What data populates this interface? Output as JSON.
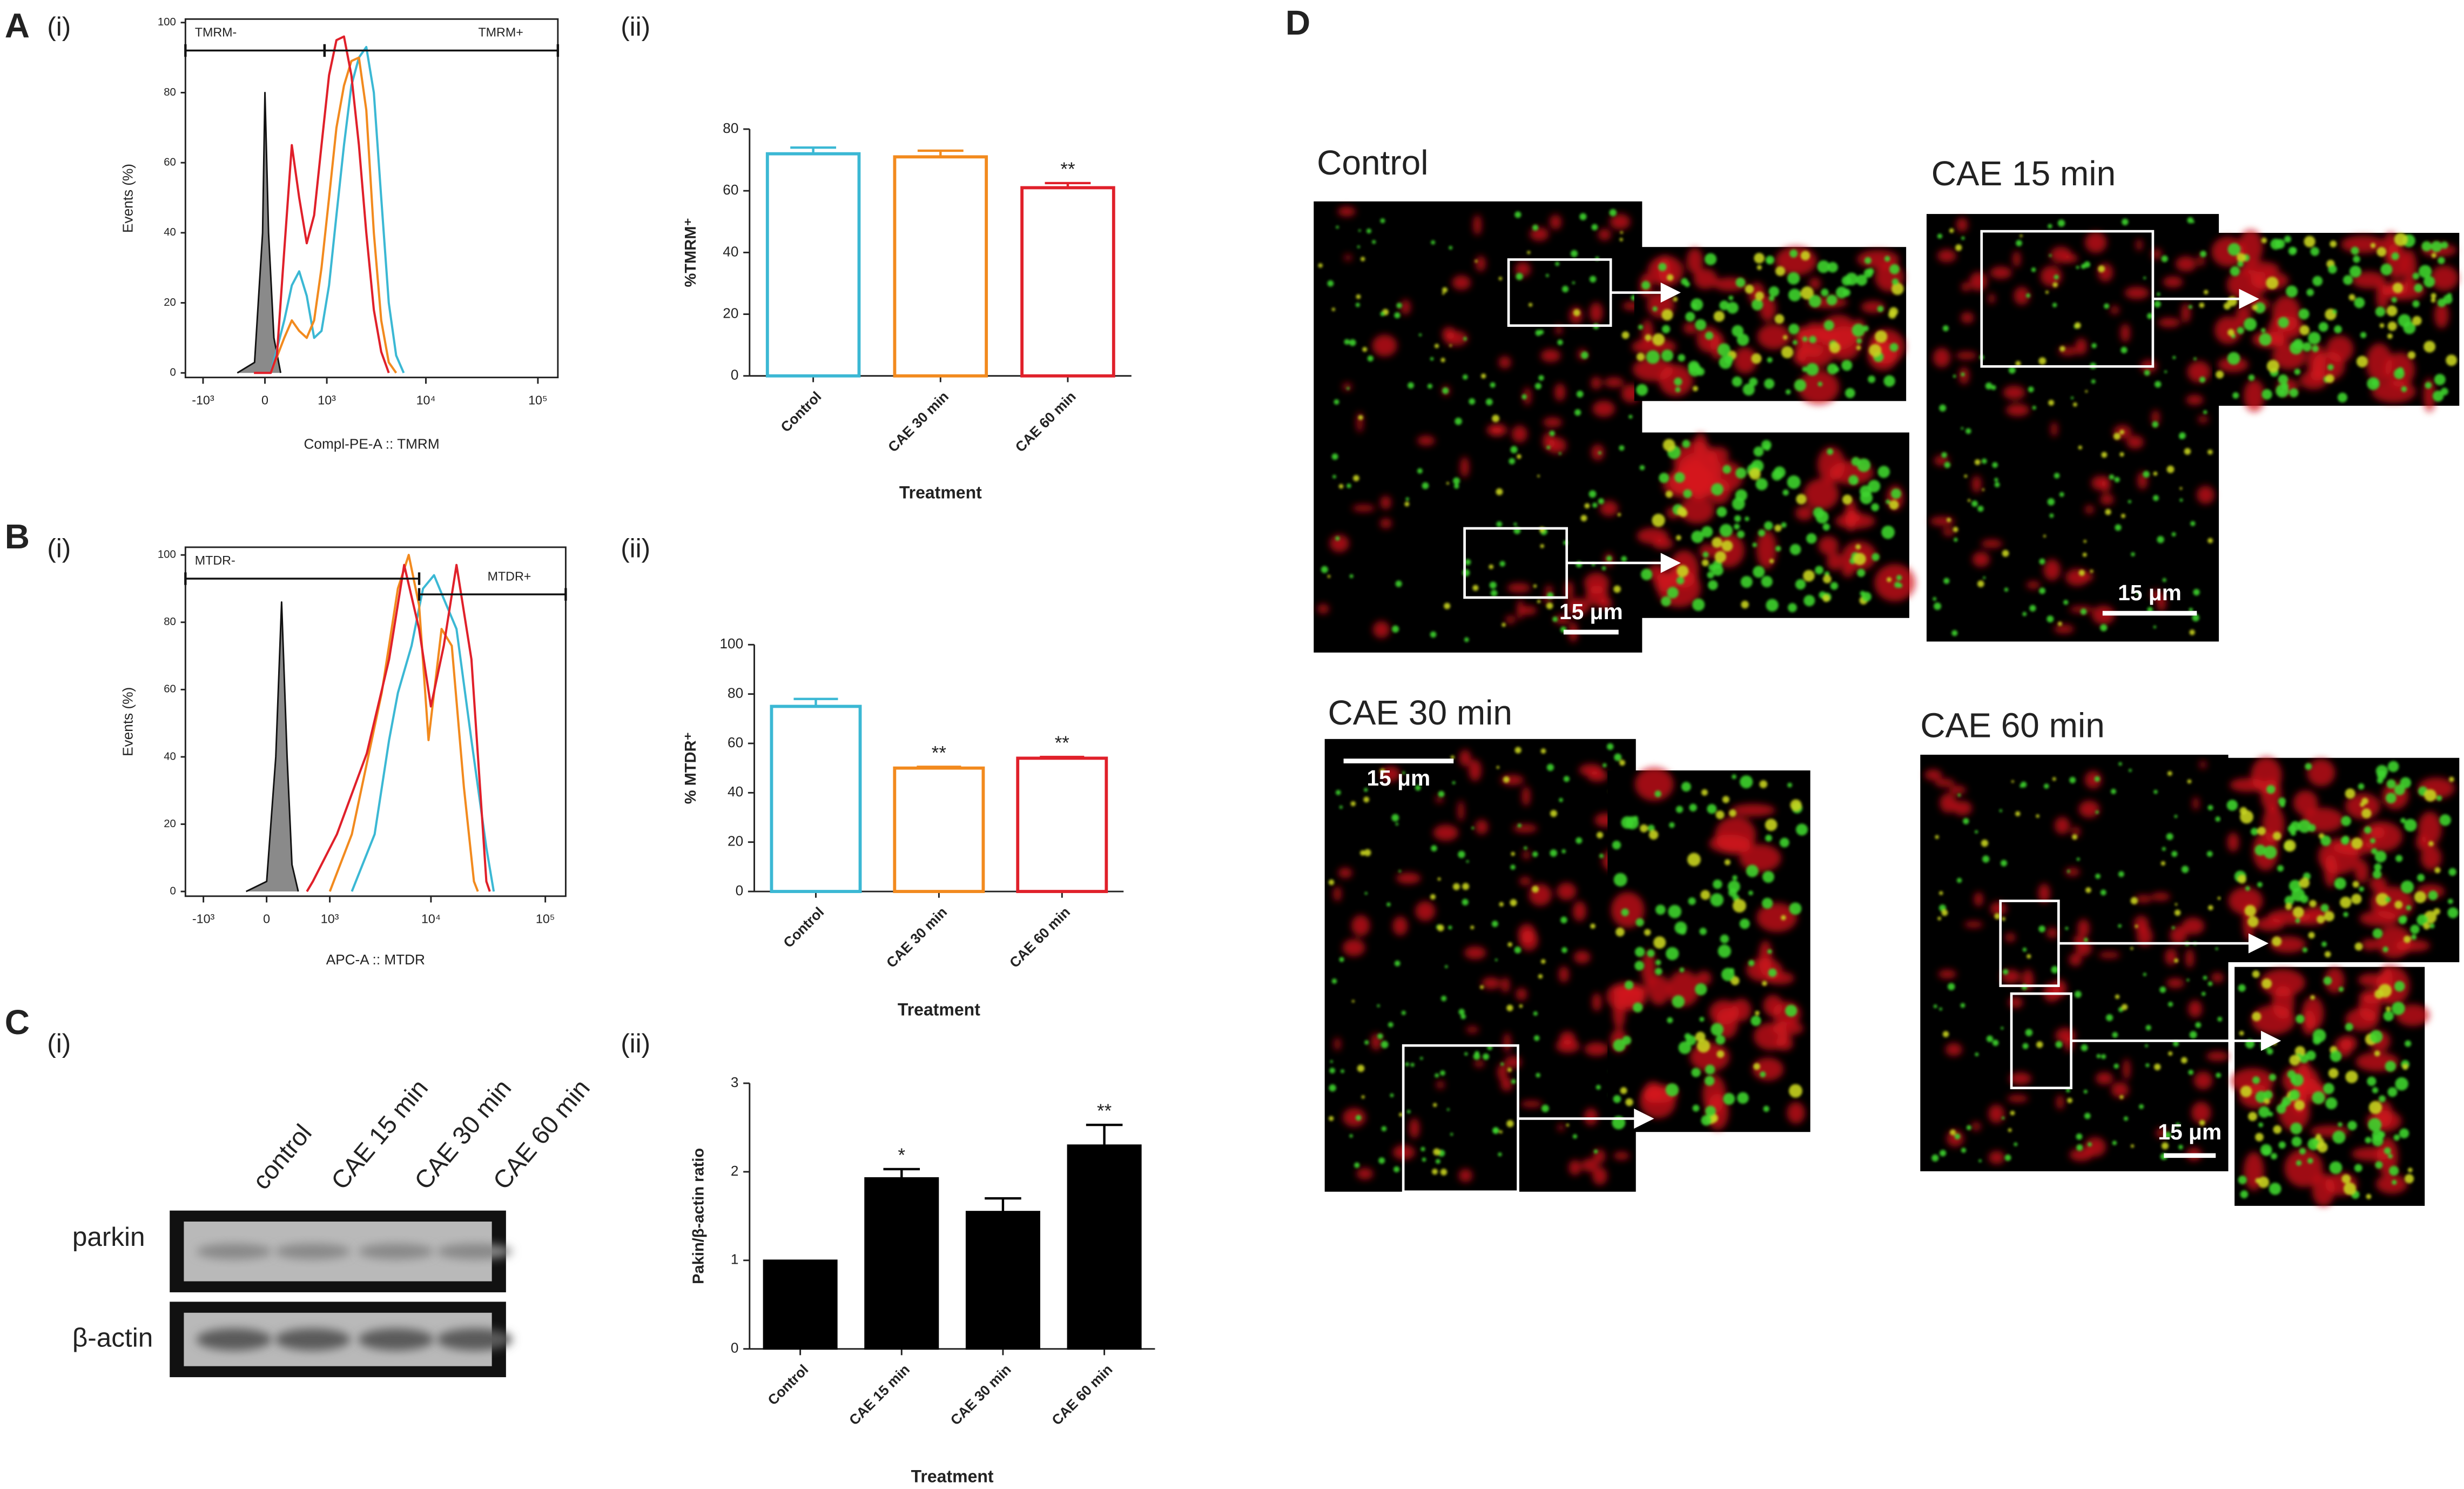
{
  "panel_labels": [
    "A",
    "(i)",
    "(ii)",
    "B",
    "(i)",
    "(ii)",
    "C",
    "(i)",
    "(ii)",
    "D"
  ],
  "chart_data": [
    {
      "type": "line",
      "xscale": "symlog",
      "x_label": "Compl-PE-A :: TMRM",
      "y_label": "Events (%)",
      "xlim": [
        -1600,
        150000
      ],
      "ylim": [
        -1.3,
        101
      ],
      "xticks": [
        {
          "value": -1000,
          "label": "-10³"
        },
        0,
        {
          "value": 1000,
          "label": "10³"
        },
        {
          "value": 10000,
          "label": "10⁴"
        },
        {
          "value": 100000,
          "label": "10⁵"
        }
      ],
      "yticks": [
        0,
        20,
        40,
        60,
        80,
        100
      ],
      "gates": [
        {
          "label": "TMRM-",
          "range": [
            -1600,
            937
          ]
        },
        {
          "label": "TMRM+",
          "range": [
            937,
            150000
          ]
        }
      ],
      "series": [
        {
          "color": "#555555",
          "fill": true,
          "x": [
            -300,
            -94,
            -20,
            0,
            30,
            80,
            150
          ],
          "values": [
            0,
            3,
            40,
            80,
            40,
            10,
            0
          ]
        },
        {
          "color": "#3bb8d4",
          "x": [
            50,
            192,
            289,
            400,
            531,
            682,
            859,
            1066,
            1303,
            1582,
            1904,
            2278,
            2714,
            3222,
            3810,
            4500,
            5290,
            6230
          ],
          "values": [
            0,
            15,
            25,
            29,
            22,
            10,
            12,
            25,
            45,
            65,
            82,
            90,
            93,
            80,
            50,
            20,
            5,
            0
          ]
        },
        {
          "color": "#f28a1e",
          "x": [
            50,
            192,
            289,
            400,
            531,
            682,
            859,
            1066,
            1303,
            1582,
            1904,
            2278,
            2714,
            3222,
            3810,
            4500,
            5290
          ],
          "values": [
            0,
            10,
            15,
            12,
            10,
            15,
            30,
            50,
            70,
            82,
            89,
            90,
            75,
            40,
            15,
            3,
            0
          ]
        },
        {
          "color": "#e0202a",
          "x": [
            -100,
            50,
            109,
            192,
            289,
            400,
            531,
            682,
            859,
            1066,
            1303,
            1582,
            1904,
            2278,
            2714,
            3222,
            3810,
            4500
          ],
          "values": [
            0,
            0,
            5,
            35,
            65,
            50,
            37,
            45,
            65,
            85,
            95,
            96,
            85,
            65,
            40,
            18,
            6,
            0
          ]
        }
      ]
    },
    {
      "type": "bar",
      "style": "outline",
      "x_label": "Treatment",
      "y_label": "%TMRM⁺",
      "categories": [
        "Control",
        "CAE 30 min",
        "CAE 60 min"
      ],
      "values": [
        72,
        71,
        61
      ],
      "errors": [
        2,
        2,
        1.5
      ],
      "annotations": [
        null,
        null,
        "**"
      ],
      "colors": [
        "#3bb8d4",
        "#f28a1e",
        "#e0202a"
      ],
      "ylim": [
        0,
        80
      ],
      "yticks": [
        0,
        20,
        40,
        60,
        80
      ]
    },
    {
      "type": "line",
      "xscale": "symlog",
      "x_label": "APC-A :: MTDR",
      "y_label": "Events (%)",
      "xlim": [
        -1600,
        150000
      ],
      "ylim": [
        -1.4,
        102.3
      ],
      "xticks": [
        {
          "value": -1000,
          "label": "-10³"
        },
        0,
        {
          "value": 1000,
          "label": "10³"
        },
        {
          "value": 10000,
          "label": "10⁴"
        },
        {
          "value": 100000,
          "label": "10⁵"
        }
      ],
      "yticks": [
        0,
        20,
        40,
        60,
        80,
        100
      ],
      "gates": [
        {
          "label": "MTDR-",
          "range": [
            -1600,
            7830
          ]
        },
        {
          "label": "MTDR+",
          "range": [
            7830,
            150000
          ]
        }
      ],
      "series": [
        {
          "color": "#555555",
          "fill": true,
          "x": [
            -200,
            0,
            80,
            138,
            200,
            262,
            350
          ],
          "values": [
            0,
            3,
            40,
            86,
            40,
            8,
            0
          ]
        },
        {
          "color": "#3bb8d4",
          "x": [
            1766,
            3000,
            4140,
            5000,
            6680,
            8500,
            10650,
            13000,
            16840,
            22790,
            30800,
            35760
          ],
          "values": [
            0,
            17,
            45,
            59,
            73,
            90,
            94,
            87,
            78,
            45,
            13,
            0
          ]
        },
        {
          "color": "#f28a1e",
          "x": [
            1000,
            1766,
            3516,
            5000,
            6300,
            7830,
            9500,
            12420,
            15300,
            19600,
            24000,
            26000
          ],
          "values": [
            0,
            17,
            59,
            90,
            100,
            85,
            45,
            78,
            73,
            31,
            3,
            0
          ]
        },
        {
          "color": "#e0202a",
          "x": [
            490,
            600,
            1210,
            2510,
            4140,
            5710,
            7830,
            10000,
            13000,
            16840,
            22790,
            30800,
            33000
          ],
          "values": [
            0,
            3,
            17,
            41,
            69,
            97,
            78,
            55,
            73,
            97,
            69,
            3,
            0
          ]
        }
      ]
    },
    {
      "type": "bar",
      "style": "outline",
      "x_label": "Treatment",
      "y_label": "% MTDR⁺",
      "categories": [
        "Control",
        "CAE 30 min",
        "CAE 60 min"
      ],
      "values": [
        75,
        50,
        54
      ],
      "errors": [
        3,
        0.5,
        0.5
      ],
      "annotations": [
        null,
        "**",
        "**"
      ],
      "colors": [
        "#3bb8d4",
        "#f28a1e",
        "#e0202a"
      ],
      "ylim": [
        0,
        100
      ],
      "yticks": [
        0,
        20,
        40,
        60,
        80,
        100
      ]
    },
    {
      "type": "bar",
      "style": "solid",
      "x_label": "Treatment",
      "y_label": "Pakin/β-actin ratio",
      "categories": [
        "Control",
        "CAE 15 min",
        "CAE 30 min",
        "CAE 60 min"
      ],
      "values": [
        1.0,
        1.93,
        1.55,
        2.3
      ],
      "errors": [
        0,
        0.1,
        0.15,
        0.23
      ],
      "annotations": [
        null,
        "*",
        null,
        "**"
      ],
      "colors": [
        "#000000",
        "#000000",
        "#000000",
        "#000000"
      ],
      "ylim": [
        0,
        3
      ],
      "yticks": [
        0,
        1,
        2,
        3
      ]
    }
  ],
  "blot": {
    "lanes": [
      "control",
      "CAE 15 min",
      "CAE 30 min",
      "CAE 60 min"
    ],
    "rows": [
      "parkin",
      "β-actin"
    ]
  },
  "micrographs": [
    {
      "title": "Control",
      "scale_bar": "15 μm"
    },
    {
      "title": "CAE 15 min",
      "scale_bar": "15 μm"
    },
    {
      "title": "CAE 30 min",
      "scale_bar": "15 μm"
    },
    {
      "title": "CAE 60 min",
      "scale_bar": "15 μm"
    }
  ]
}
